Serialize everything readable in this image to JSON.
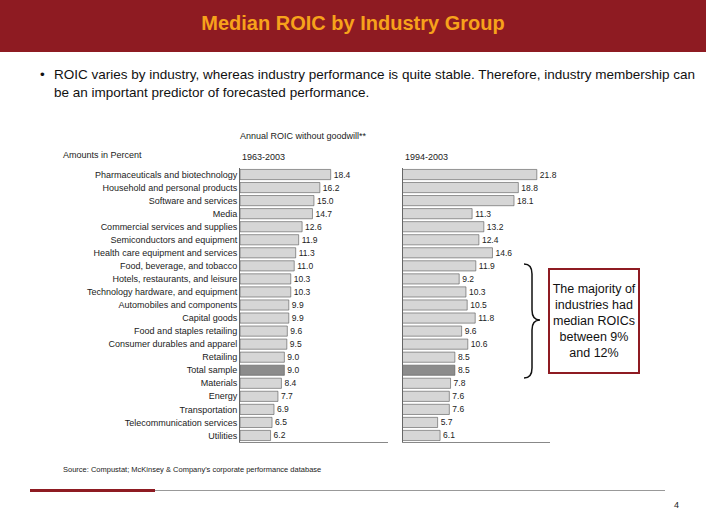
{
  "slide": {
    "title": "Median ROIC by Industry Group",
    "bullet": "ROIC varies by industry, whereas industry performance is quite stable.  Therefore, industry membership can be an important predictor of forecasted performance.",
    "chart_header": "Annual ROIC without goodwill**",
    "units_note": "Amounts in Percent",
    "callout": "The majority of industries had median ROICs between 9% and 12%",
    "source": "Source: Compustat; McKinsey & Company's corporate performance database",
    "page_number": "4"
  },
  "chart_data": [
    {
      "type": "bar",
      "title": "1963-2003",
      "orientation": "horizontal",
      "data_labels": true,
      "tick_labels": "y",
      "grid": false,
      "categories": [
        "Pharmaceuticals and biotechnology",
        "Household and personal products",
        "Software and services",
        "Media",
        "Commercial services and supplies",
        "Semiconductors and equipment",
        "Health care equipment and services",
        "Food, beverage, and tobacco",
        "Hotels, restaurants, and leisure",
        "Technology hardware, and equipment",
        "Automobiles and components",
        "Capital goods",
        "Food and staples retailing",
        "Consumer durables and apparel",
        "Retailing",
        "Total sample",
        "Materials",
        "Energy",
        "Transportation",
        "Telecommunication services",
        "Utilities"
      ],
      "values": [
        18.4,
        16.2,
        15.0,
        14.7,
        12.6,
        11.9,
        11.3,
        11.0,
        10.3,
        10.3,
        9.9,
        9.9,
        9.6,
        9.5,
        9.0,
        9.0,
        8.4,
        7.7,
        6.9,
        6.5,
        6.2
      ],
      "value_labels": [
        "18.4",
        "16.2",
        "15.0",
        "14.7",
        "12.6",
        "11.9",
        "11.3",
        "11.0",
        "10.3",
        "10.3",
        "9.9",
        "9.9",
        "9.6",
        "9.5",
        "9.0",
        "9.0",
        "8.4",
        "7.7",
        "6.9",
        "6.5",
        "6.2"
      ],
      "colors": [
        "#d6d6d6",
        "#d6d6d6",
        "#d6d6d6",
        "#d6d6d6",
        "#d6d6d6",
        "#d6d6d6",
        "#d6d6d6",
        "#d6d6d6",
        "#d6d6d6",
        "#d6d6d6",
        "#d6d6d6",
        "#d6d6d6",
        "#d6d6d6",
        "#d6d6d6",
        "#d6d6d6",
        "#8c8c8c",
        "#d6d6d6",
        "#d6d6d6",
        "#d6d6d6",
        "#d6d6d6",
        "#d6d6d6"
      ],
      "xlim": [
        0,
        30
      ]
    },
    {
      "type": "bar",
      "title": "1994-2003",
      "orientation": "horizontal",
      "data_labels": true,
      "tick_labels": false,
      "grid": false,
      "categories": [
        "Pharmaceuticals and biotechnology",
        "Household and personal products",
        "Software and services",
        "Media",
        "Commercial services and supplies",
        "Semiconductors and equipment",
        "Health care equipment and services",
        "Food, beverage, and tobacco",
        "Hotels, restaurants, and leisure",
        "Technology hardware, and equipment",
        "Automobiles and components",
        "Capital goods",
        "Food and staples retailing",
        "Consumer durables and apparel",
        "Retailing",
        "Total sample",
        "Materials",
        "Energy",
        "Transportation",
        "Telecommunication services",
        "Utilities"
      ],
      "values": [
        21.8,
        18.8,
        18.1,
        11.3,
        13.2,
        12.4,
        14.6,
        11.9,
        9.2,
        10.3,
        10.5,
        11.8,
        9.6,
        10.6,
        8.5,
        8.5,
        7.8,
        7.6,
        7.6,
        5.7,
        6.1
      ],
      "colors": [
        "#d6d6d6",
        "#d6d6d6",
        "#d6d6d6",
        "#d6d6d6",
        "#d6d6d6",
        "#d6d6d6",
        "#d6d6d6",
        "#d6d6d6",
        "#d6d6d6",
        "#d6d6d6",
        "#d6d6d6",
        "#d6d6d6",
        "#d6d6d6",
        "#d6d6d6",
        "#d6d6d6",
        "#8c8c8c",
        "#d6d6d6",
        "#d6d6d6",
        "#d6d6d6",
        "#d6d6d6",
        "#d6d6d6"
      ],
      "xlim": [
        0,
        24
      ]
    }
  ]
}
